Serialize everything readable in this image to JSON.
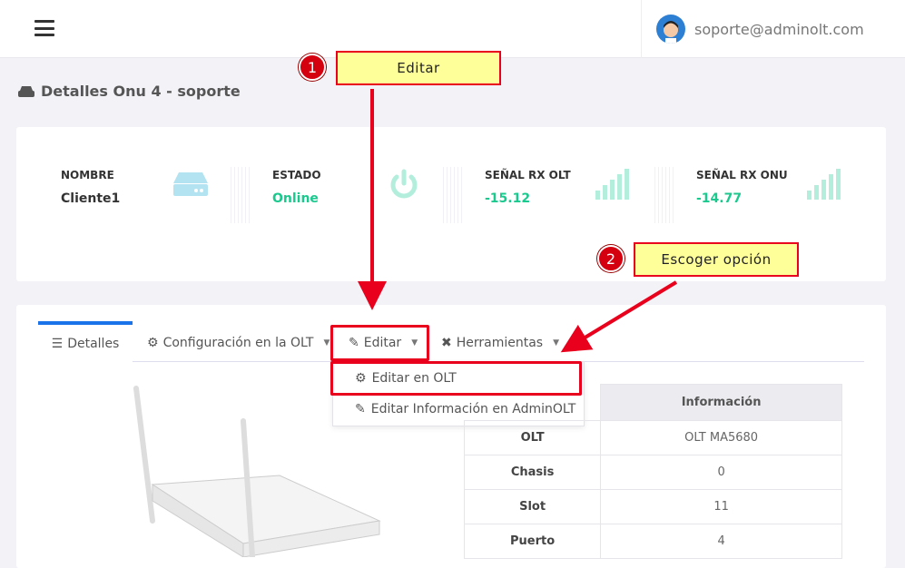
{
  "header": {
    "user_email": "soporte@adminolt.com"
  },
  "page_title": "Detalles Onu 4 - soporte",
  "stats": [
    {
      "label": "NOMBRE",
      "value": "Cliente1",
      "icon": "hdd-icon"
    },
    {
      "label": "ESTADO",
      "value": "Online",
      "icon": "power-icon"
    },
    {
      "label": "SEÑAL RX OLT",
      "value": "-15.12",
      "icon": "signal-icon"
    },
    {
      "label": "SEÑAL RX ONU",
      "value": "-14.77",
      "icon": "signal-icon"
    }
  ],
  "tabs": [
    {
      "label": "Detalles",
      "active": true
    },
    {
      "label": "Configuración en la OLT"
    },
    {
      "label": "Editar"
    },
    {
      "label": "Herramientas"
    }
  ],
  "dropdown": [
    "Editar en OLT",
    "Editar Información en AdminOLT"
  ],
  "info_table": {
    "header": "Información",
    "rows": [
      [
        "OLT",
        "OLT MA5680"
      ],
      [
        "Chasis",
        "0"
      ],
      [
        "Slot",
        "11"
      ],
      [
        "Puerto",
        "4"
      ]
    ]
  },
  "annotations": [
    {
      "number": "1",
      "text": "Editar"
    },
    {
      "number": "2",
      "text": "Escoger opción"
    }
  ],
  "colors": {
    "accent": "#1a73e8",
    "online": "#1bc98e",
    "annotation_red": "#e8001c",
    "note_bg": "#ffff99"
  }
}
